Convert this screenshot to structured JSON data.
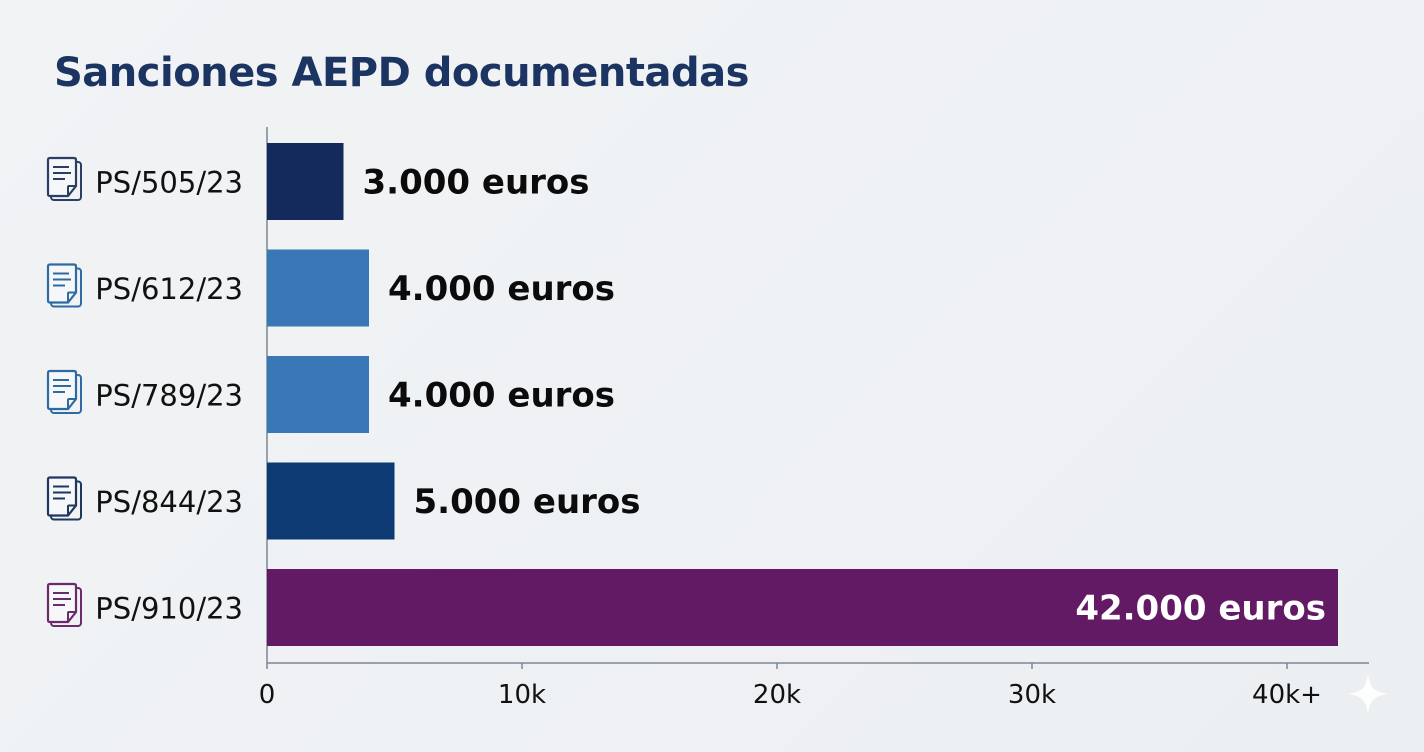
{
  "chart_data": {
    "type": "bar",
    "orientation": "horizontal",
    "title": "Sanciones AEPD documentadas",
    "categories": [
      "PS/505/23",
      "PS/612/23",
      "PS/789/23",
      "PS/844/23",
      "PS/910/23"
    ],
    "values": [
      3000,
      4000,
      4000,
      5000,
      42000
    ],
    "data_labels": [
      "3.000 euros",
      "4.000 euros",
      "4.000 euros",
      "5.000 euros",
      "42.000 euros"
    ],
    "bar_colors": [
      "#142a5c",
      "#3a77b6",
      "#3a77b6",
      "#0d3a72",
      "#621a64"
    ],
    "category_icon": "document-icon",
    "icon_colors": [
      "#2b3f66",
      "#2f6ba3",
      "#2f6ba3",
      "#1f3660",
      "#6a2a6c"
    ],
    "xaxis": {
      "ticks": [
        0,
        10000,
        20000,
        30000,
        40000
      ],
      "tick_labels": [
        "0",
        "10k",
        "20k",
        "30k",
        "40k+"
      ],
      "range": [
        0,
        42000
      ]
    },
    "xlabel": "",
    "ylabel": "",
    "grid": false,
    "legend": "none"
  }
}
